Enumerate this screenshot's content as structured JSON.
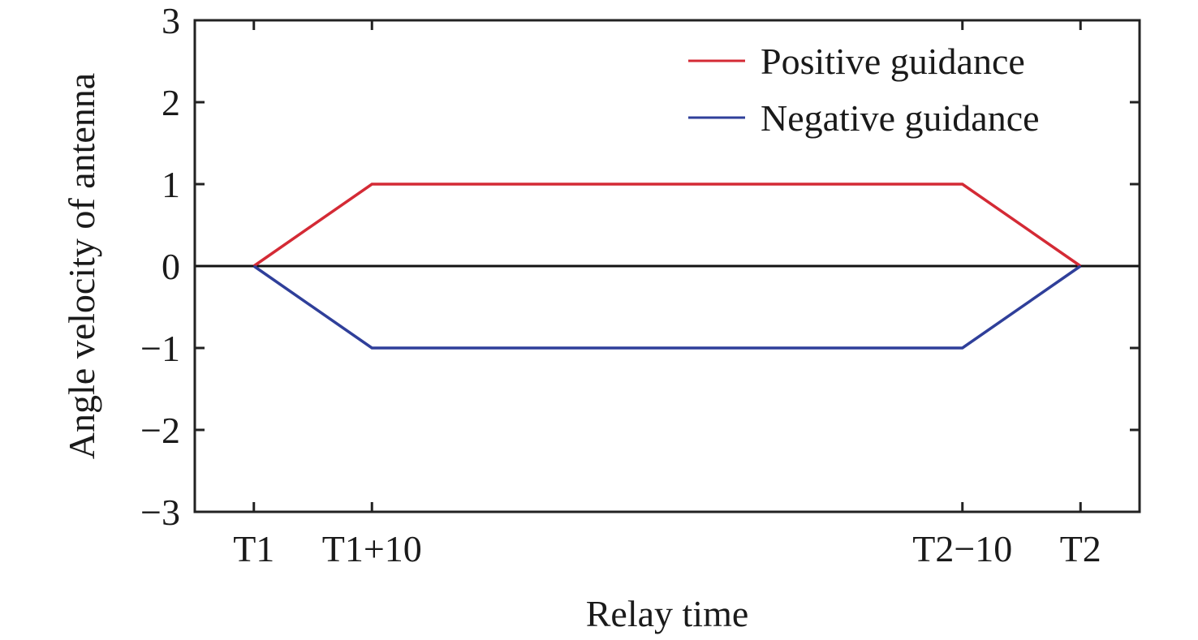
{
  "chart_data": {
    "type": "line",
    "title": "",
    "xlabel": "Relay time",
    "ylabel": "Angle velocity of antenna",
    "xlim": [
      -5,
      75
    ],
    "ylim": [
      -3,
      3
    ],
    "grid": false,
    "x_ticks": [
      {
        "value": 0,
        "label": "T1"
      },
      {
        "value": 10,
        "label": "T1+10"
      },
      {
        "value": 60,
        "label": "T2−10"
      },
      {
        "value": 70,
        "label": "T2"
      }
    ],
    "y_ticks": [
      {
        "value": 3,
        "label": "3"
      },
      {
        "value": 2,
        "label": "2"
      },
      {
        "value": 1,
        "label": "1"
      },
      {
        "value": 0,
        "label": "0"
      },
      {
        "value": -1,
        "label": "−1"
      },
      {
        "value": -2,
        "label": "−2"
      },
      {
        "value": -3,
        "label": "−3"
      }
    ],
    "reference_line_y": 0,
    "legend_position": "top-right",
    "series": [
      {
        "name": "Positive guidance",
        "color": "#d42a35",
        "x": [
          0,
          10,
          60,
          70
        ],
        "y": [
          0,
          1,
          1,
          0
        ]
      },
      {
        "name": "Negative guidance",
        "color": "#2f3f9a",
        "x": [
          0,
          10,
          60,
          70
        ],
        "y": [
          0,
          -1,
          -1,
          0
        ]
      }
    ]
  }
}
